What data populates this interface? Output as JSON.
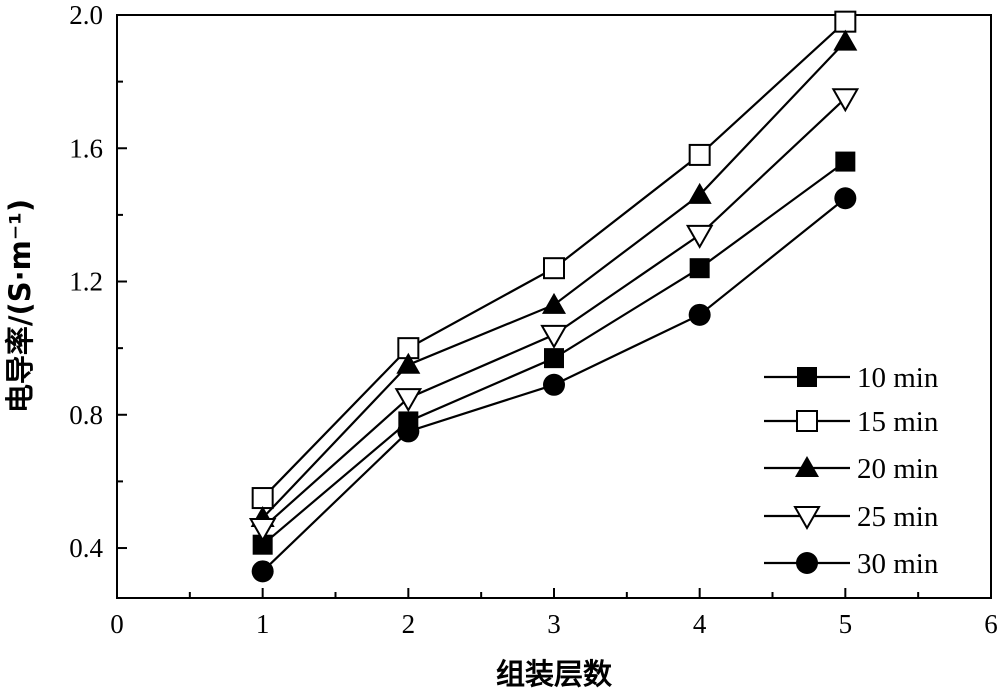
{
  "chart_data": {
    "type": "line",
    "xlabel": "组装层数",
    "ylabel": "电导率/(S·m⁻¹)",
    "xlim": [
      0,
      6
    ],
    "ylim": [
      0.25,
      2.0
    ],
    "x_ticks": [
      "0",
      "1",
      "2",
      "3",
      "4",
      "5",
      "6"
    ],
    "y_ticks": [
      "0.4",
      "0.8",
      "1.2",
      "1.6",
      "2.0"
    ],
    "grid": false,
    "legend_position": "bottom-right",
    "x": [
      1,
      2,
      3,
      4,
      5
    ],
    "series": [
      {
        "name": "10 min",
        "marker": "filled-square",
        "values": [
          0.41,
          0.78,
          0.97,
          1.24,
          1.56
        ]
      },
      {
        "name": "15 min",
        "marker": "open-square",
        "values": [
          0.55,
          1.0,
          1.24,
          1.58,
          1.98
        ]
      },
      {
        "name": "20 min",
        "marker": "filled-triangle-up",
        "values": [
          0.49,
          0.95,
          1.13,
          1.46,
          1.92
        ]
      },
      {
        "name": "25 min",
        "marker": "open-triangle-down",
        "values": [
          0.46,
          0.85,
          1.04,
          1.34,
          1.75
        ]
      },
      {
        "name": "30 min",
        "marker": "filled-circle",
        "values": [
          0.33,
          0.75,
          0.89,
          1.1,
          1.45
        ]
      }
    ]
  }
}
